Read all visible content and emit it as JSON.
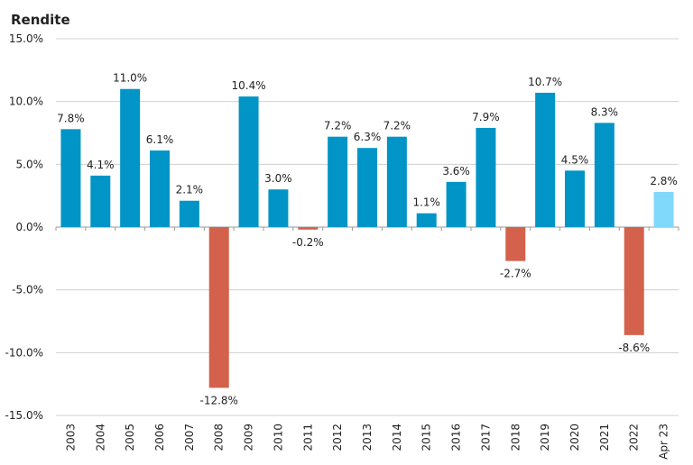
{
  "chart_data": {
    "type": "bar",
    "ylabel": "Rendite",
    "ylim": [
      -15,
      15
    ],
    "yticks": [
      15,
      10,
      5,
      0,
      -5,
      -10,
      -15
    ],
    "ytick_labels": [
      "15.0%",
      "10.0%",
      "5.0%",
      "0.0%",
      "-5.0%",
      "-10.0%",
      "-15.0%"
    ],
    "grid": true,
    "categories": [
      "2003",
      "2004",
      "2005",
      "2006",
      "2007",
      "2008",
      "2009",
      "2010",
      "2011",
      "2012",
      "2013",
      "2014",
      "2015",
      "2016",
      "2017",
      "2018",
      "2019",
      "2020",
      "2021",
      "2022",
      "Apr 23"
    ],
    "values": [
      7.8,
      4.1,
      11.0,
      6.1,
      2.1,
      -12.8,
      10.4,
      3.0,
      -0.2,
      7.2,
      6.3,
      7.2,
      1.1,
      3.6,
      7.9,
      -2.7,
      10.7,
      4.5,
      8.3,
      -8.6,
      2.8
    ],
    "data_labels": [
      "7.8%",
      "4.1%",
      "11.0%",
      "6.1%",
      "2.1%",
      "-12.8%",
      "10.4%",
      "3.0%",
      "-0.2%",
      "7.2%",
      "6.3%",
      "7.2%",
      "1.1%",
      "3.6%",
      "7.9%",
      "-2.7%",
      "10.7%",
      "4.5%",
      "8.3%",
      "-8.6%",
      "2.8%"
    ],
    "colors": {
      "positive": "#0095c6",
      "negative": "#d4614b",
      "ytd": "#80d9fa"
    }
  }
}
